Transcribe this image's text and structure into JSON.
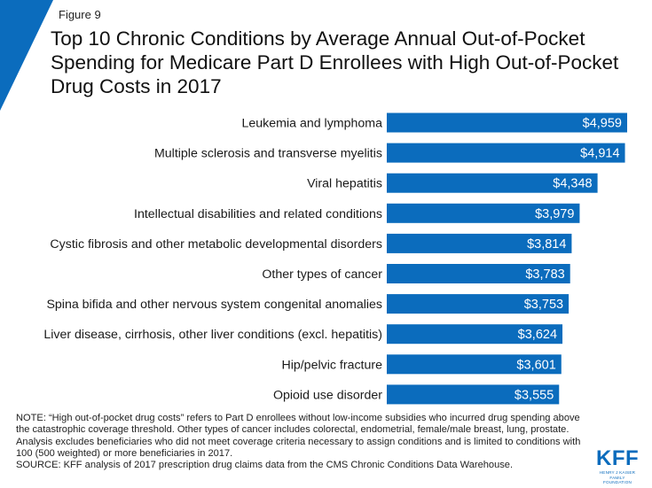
{
  "figure_label": "Figure 9",
  "title": "Top 10 Chronic Conditions by Average Annual Out-of-Pocket Spending for Medicare Part D Enrollees with High Out-of-Pocket Drug Costs in 2017",
  "colors": {
    "bar": "#0b6cbd",
    "accent": "#0b6cbd",
    "bar_label": "#ffffff"
  },
  "chart_data": {
    "type": "bar",
    "orientation": "horizontal",
    "title": "Top 10 Chronic Conditions by Average Annual Out-of-Pocket Spending for Medicare Part D Enrollees with High Out-of-Pocket Drug Costs in 2017",
    "categories": [
      "Leukemia and lymphoma",
      "Multiple sclerosis and transverse myelitis",
      "Viral hepatitis",
      "Intellectual disabilities and related conditions",
      "Cystic fibrosis and other metabolic developmental disorders",
      "Other types of cancer",
      "Spina bifida and other nervous system congenital anomalies",
      "Liver disease, cirrhosis, other liver conditions (excl. hepatitis)",
      "Hip/pelvic fracture",
      "Opioid use disorder"
    ],
    "values": [
      4959,
      4914,
      4348,
      3979,
      3814,
      3783,
      3753,
      3624,
      3601,
      3555
    ],
    "value_labels": [
      "$4,959",
      "$4,914",
      "$4,348",
      "$3,979",
      "$3,814",
      "$3,783",
      "$3,753",
      "$3,624",
      "$3,601",
      "$3,555"
    ],
    "xlim": [
      0,
      4959
    ],
    "grid": false,
    "legend": "none"
  },
  "notes": {
    "note": "NOTE: “High out-of-pocket drug costs” refers to Part D enrollees without low-income subsidies who incurred drug spending above the catastrophic coverage threshold. Other types of cancer includes colorectal, endometrial, female/male breast, lung, prostate. Analysis excludes beneficiaries who did not meet coverage criteria necessary to assign conditions and is limited to conditions with 100 (500 weighted) or more beneficiaries in 2017.",
    "source": "SOURCE: KFF analysis of 2017 prescription drug claims data from the CMS Chronic Conditions Data Warehouse."
  },
  "logo": {
    "text": "KFF",
    "subtext_line1": "HENRY J KAISER",
    "subtext_line2": "FAMILY FOUNDATION"
  }
}
